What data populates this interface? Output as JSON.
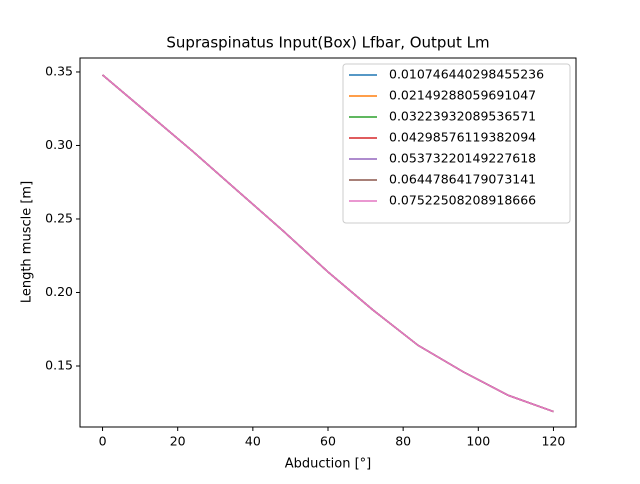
{
  "chart_data": {
    "type": "line",
    "title": "Supraspinatus Input(Box) Lfbar, Output Lm",
    "xlabel": "Abduction [°]",
    "ylabel": "Length muscle [m]",
    "x": [
      0,
      12,
      24,
      36,
      48,
      60,
      72,
      84,
      96,
      108,
      120
    ],
    "series": [
      {
        "name": "0.010746440298455236",
        "color": "#1f77b4",
        "values": [
          0.348,
          0.322,
          0.296,
          0.269,
          0.242,
          0.214,
          0.188,
          0.164,
          0.146,
          0.13,
          0.119
        ]
      },
      {
        "name": "0.02149288059691047",
        "color": "#ff7f0e",
        "values": [
          0.348,
          0.322,
          0.296,
          0.269,
          0.242,
          0.214,
          0.188,
          0.164,
          0.146,
          0.13,
          0.119
        ]
      },
      {
        "name": "0.03223932089536571",
        "color": "#2ca02c",
        "values": [
          0.348,
          0.322,
          0.296,
          0.269,
          0.242,
          0.214,
          0.188,
          0.164,
          0.146,
          0.13,
          0.119
        ]
      },
      {
        "name": "0.04298576119382094",
        "color": "#d62728",
        "values": [
          0.348,
          0.322,
          0.296,
          0.269,
          0.242,
          0.214,
          0.188,
          0.164,
          0.146,
          0.13,
          0.119
        ]
      },
      {
        "name": "0.05373220149227618",
        "color": "#9467bd",
        "values": [
          0.348,
          0.322,
          0.296,
          0.269,
          0.242,
          0.214,
          0.188,
          0.164,
          0.146,
          0.13,
          0.119
        ]
      },
      {
        "name": "0.06447864179073141",
        "color": "#8c564b",
        "values": [
          0.348,
          0.322,
          0.296,
          0.269,
          0.242,
          0.214,
          0.188,
          0.164,
          0.146,
          0.13,
          0.119
        ]
      },
      {
        "name": "0.07522508208918666",
        "color": "#e377c2",
        "values": [
          0.348,
          0.322,
          0.296,
          0.269,
          0.242,
          0.214,
          0.188,
          0.164,
          0.146,
          0.13,
          0.119
        ]
      }
    ],
    "xlim": [
      -6,
      126
    ],
    "xticks": [
      0,
      20,
      40,
      60,
      80,
      100,
      120
    ],
    "ylim": [
      0.1085,
      0.3595
    ],
    "yticks": [
      {
        "value": 0.15,
        "label": "0.15"
      },
      {
        "value": 0.2,
        "label": "0.20"
      },
      {
        "value": 0.25,
        "label": "0.25"
      },
      {
        "value": 0.3,
        "label": "0.30"
      },
      {
        "value": 0.35,
        "label": "0.35"
      }
    ],
    "legend": "upper right",
    "grid": false
  }
}
